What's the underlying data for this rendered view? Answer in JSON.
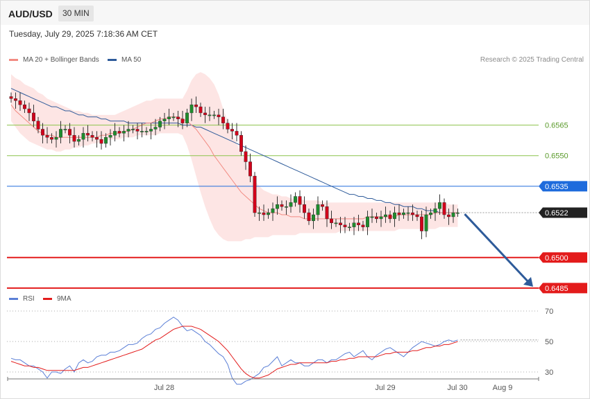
{
  "header": {
    "symbol": "AUD/USD",
    "timeframe": "30 MIN"
  },
  "datetime": "Tuesday, July 29, 2025 7:18:36 AM CET",
  "legend": {
    "ma20": {
      "label": "MA 20 + Bollinger Bands",
      "color": "#f28b82"
    },
    "ma50": {
      "label": "MA 50",
      "color": "#2e5b9a"
    },
    "rsi": {
      "label": "RSI",
      "color": "#5b7fd6"
    },
    "rsi9": {
      "label": "9MA",
      "color": "#e31b1b"
    }
  },
  "credit": "Research © 2025 Trading Central",
  "chart_data": [
    {
      "type": "candlestick",
      "pair": "AUD/USD",
      "timeframe": "30 MIN",
      "ylim": [
        0.647,
        0.6606
      ],
      "levels": [
        {
          "value": 0.6565,
          "label": "0.6565",
          "kind": "resistance",
          "color": "#8bc34a"
        },
        {
          "value": 0.655,
          "label": "0.6550",
          "kind": "resistance",
          "color": "#8bc34a"
        },
        {
          "value": 0.6535,
          "label": "0.6535",
          "kind": "pivot",
          "color": "#1e6bdc"
        },
        {
          "value": 0.6522,
          "label": "0.6522",
          "kind": "last",
          "color": "#222222"
        },
        {
          "value": 0.65,
          "label": "0.6500",
          "kind": "support",
          "color": "#e31b1b"
        },
        {
          "value": 0.6485,
          "label": "0.6485",
          "kind": "support",
          "color": "#e31b1b"
        }
      ],
      "x_labels": [
        {
          "label": "Jul 28",
          "index": 33
        },
        {
          "label": "Jul 29",
          "index": 82
        },
        {
          "label": "Jul 30",
          "index": 98
        },
        {
          "label": "Aug 9",
          "index": 108
        }
      ],
      "close": [
        0.6578,
        0.6577,
        0.6575,
        0.6573,
        0.6571,
        0.6567,
        0.6563,
        0.656,
        0.6559,
        0.6558,
        0.6559,
        0.6563,
        0.6563,
        0.656,
        0.6557,
        0.6558,
        0.6561,
        0.656,
        0.6559,
        0.6558,
        0.6556,
        0.6559,
        0.656,
        0.6562,
        0.6561,
        0.6562,
        0.6563,
        0.6563,
        0.6562,
        0.6562,
        0.6562,
        0.6563,
        0.6564,
        0.6567,
        0.6568,
        0.6569,
        0.6569,
        0.6568,
        0.6566,
        0.6571,
        0.6575,
        0.6574,
        0.6571,
        0.657,
        0.657,
        0.657,
        0.6569,
        0.6566,
        0.6563,
        0.6562,
        0.656,
        0.6552,
        0.6547,
        0.654,
        0.6522,
        0.6522,
        0.6521,
        0.6522,
        0.6524,
        0.6526,
        0.6525,
        0.6525,
        0.6527,
        0.653,
        0.6526,
        0.6522,
        0.6518,
        0.6521,
        0.6526,
        0.6525,
        0.6519,
        0.6517,
        0.6517,
        0.6516,
        0.6515,
        0.6515,
        0.6517,
        0.6516,
        0.6515,
        0.652,
        0.652,
        0.6519,
        0.652,
        0.6521,
        0.6519,
        0.6522,
        0.6521,
        0.6522,
        0.6522,
        0.6521,
        0.652,
        0.6513,
        0.6521,
        0.6522,
        0.6524,
        0.6527,
        0.6521,
        0.652,
        0.6522,
        0.6522
      ],
      "series": [
        {
          "name": "MA 20",
          "values": [
            0.6575,
            0.6572,
            0.657,
            0.6568,
            0.6566,
            0.6564,
            0.6562,
            0.6561,
            0.656,
            0.656,
            0.6559,
            0.6559,
            0.6559,
            0.6559,
            0.6559,
            0.6559,
            0.6559,
            0.6559,
            0.6559,
            0.6559,
            0.656,
            0.656,
            0.6561,
            0.6561,
            0.6561,
            0.6562,
            0.6562,
            0.6563,
            0.6564,
            0.6565,
            0.6566,
            0.6566,
            0.6567,
            0.6568,
            0.6568,
            0.6569,
            0.6569,
            0.6569,
            0.6568,
            0.6567,
            0.6565,
            0.6563,
            0.656,
            0.6557,
            0.6554,
            0.655,
            0.6547,
            0.6544,
            0.6541,
            0.6538,
            0.6535,
            0.6532,
            0.653,
            0.6528,
            0.6526,
            0.6524,
            0.6523,
            0.6522,
            0.6522,
            0.6522,
            0.6521,
            0.6521,
            0.652,
            0.652,
            0.652,
            0.6519,
            0.6519,
            0.6519,
            0.6519,
            0.6519,
            0.6519,
            0.6519,
            0.6519,
            0.6519,
            0.6519,
            0.6519,
            0.6519,
            0.6519,
            0.6519,
            0.652,
            0.652,
            0.652,
            0.652,
            0.652,
            0.652,
            0.652,
            0.6521,
            0.6521,
            0.6521,
            0.6521,
            0.6521,
            0.6521,
            0.6521,
            0.6521,
            0.6522,
            0.6522,
            0.6522,
            0.6522,
            0.6522,
            0.6522
          ]
        },
        {
          "name": "MA 50",
          "values": [
            0.6583,
            0.6582,
            0.6581,
            0.658,
            0.6579,
            0.6578,
            0.6577,
            0.6576,
            0.6575,
            0.6574,
            0.6574,
            0.6573,
            0.6572,
            0.6572,
            0.6571,
            0.657,
            0.657,
            0.6569,
            0.6569,
            0.6569,
            0.6568,
            0.6568,
            0.6567,
            0.6567,
            0.6567,
            0.6567,
            0.6566,
            0.6566,
            0.6566,
            0.6566,
            0.6566,
            0.6566,
            0.6566,
            0.6566,
            0.6566,
            0.6566,
            0.6566,
            0.6566,
            0.6565,
            0.6565,
            0.6565,
            0.6564,
            0.6564,
            0.6563,
            0.6562,
            0.6561,
            0.656,
            0.6559,
            0.6558,
            0.6557,
            0.6556,
            0.6555,
            0.6554,
            0.6553,
            0.6552,
            0.6551,
            0.655,
            0.6549,
            0.6548,
            0.6547,
            0.6546,
            0.6545,
            0.6544,
            0.6543,
            0.6542,
            0.6541,
            0.654,
            0.6539,
            0.6538,
            0.6537,
            0.6536,
            0.6535,
            0.6534,
            0.6533,
            0.6532,
            0.6531,
            0.6531,
            0.653,
            0.653,
            0.6529,
            0.6529,
            0.6528,
            0.6528,
            0.6527,
            0.6527,
            0.6526,
            0.6526,
            0.6525,
            0.6525,
            0.6525,
            0.6524,
            0.6524,
            0.6523,
            0.6523,
            0.6523,
            0.6522,
            0.6522,
            0.6522,
            0.6522,
            0.6522
          ]
        },
        {
          "name": "Bollinger Upper",
          "values": [
            0.659,
            0.6588,
            0.6587,
            0.6585,
            0.6584,
            0.6583,
            0.6581,
            0.658,
            0.6578,
            0.6577,
            0.6576,
            0.6575,
            0.6574,
            0.6573,
            0.6572,
            0.6572,
            0.6571,
            0.6571,
            0.657,
            0.657,
            0.657,
            0.657,
            0.657,
            0.657,
            0.6571,
            0.6572,
            0.6573,
            0.6574,
            0.6575,
            0.6576,
            0.6577,
            0.6577,
            0.6578,
            0.6578,
            0.6578,
            0.6578,
            0.6578,
            0.6578,
            0.6578,
            0.6582,
            0.6587,
            0.659,
            0.6591,
            0.659,
            0.6588,
            0.6585,
            0.658,
            0.6573,
            0.6567,
            0.6561,
            0.6556,
            0.6551,
            0.6546,
            0.6542,
            0.6538,
            0.6535,
            0.6533,
            0.6532,
            0.6531,
            0.6531,
            0.653,
            0.653,
            0.6529,
            0.6529,
            0.6529,
            0.6528,
            0.6528,
            0.6528,
            0.6528,
            0.6527,
            0.6527,
            0.6527,
            0.6527,
            0.6527,
            0.6527,
            0.6527,
            0.6527,
            0.6527,
            0.6527,
            0.6527,
            0.6527,
            0.6527,
            0.6527,
            0.6527,
            0.6527,
            0.6527,
            0.6527,
            0.6527,
            0.6527,
            0.6527,
            0.6527,
            0.6527,
            0.6527,
            0.6527,
            0.6527,
            0.6527,
            0.6527,
            0.6526,
            0.6526,
            0.6526
          ]
        },
        {
          "name": "Bollinger Lower",
          "values": [
            0.6567,
            0.6564,
            0.6561,
            0.6559,
            0.6557,
            0.6556,
            0.6555,
            0.6554,
            0.6553,
            0.6553,
            0.6552,
            0.6552,
            0.6553,
            0.6553,
            0.6554,
            0.6554,
            0.6555,
            0.6555,
            0.6556,
            0.6556,
            0.6557,
            0.6557,
            0.6558,
            0.6558,
            0.6558,
            0.6559,
            0.6559,
            0.6559,
            0.656,
            0.656,
            0.656,
            0.656,
            0.656,
            0.6561,
            0.6561,
            0.6561,
            0.6561,
            0.6561,
            0.656,
            0.6555,
            0.6548,
            0.654,
            0.6532,
            0.6525,
            0.6519,
            0.6514,
            0.6511,
            0.6509,
            0.6508,
            0.6508,
            0.6508,
            0.6508,
            0.6509,
            0.6509,
            0.651,
            0.651,
            0.651,
            0.651,
            0.6511,
            0.6511,
            0.6511,
            0.6511,
            0.6511,
            0.6511,
            0.6512,
            0.6512,
            0.6512,
            0.6512,
            0.6512,
            0.6512,
            0.6512,
            0.6512,
            0.6512,
            0.6513,
            0.6513,
            0.6513,
            0.6513,
            0.6513,
            0.6513,
            0.6513,
            0.6513,
            0.6513,
            0.6513,
            0.6513,
            0.6513,
            0.6513,
            0.6514,
            0.6514,
            0.6514,
            0.6514,
            0.6514,
            0.6514,
            0.6514,
            0.6514,
            0.6514,
            0.6515,
            0.6515,
            0.6515,
            0.6515,
            0.6515
          ]
        }
      ],
      "forecast_arrow": {
        "from": 0.6522,
        "to": 0.6485
      }
    },
    {
      "type": "line",
      "name": "RSI",
      "ylim": [
        20,
        80
      ],
      "yticks": [
        30,
        50,
        70
      ],
      "series": [
        {
          "name": "RSI",
          "values": [
            39,
            38,
            38,
            36,
            34,
            34,
            32,
            30,
            26,
            30,
            30,
            29,
            32,
            34,
            30,
            36,
            38,
            36,
            37,
            40,
            41,
            41,
            43,
            43,
            44,
            46,
            48,
            48,
            49,
            52,
            54,
            55,
            58,
            59,
            62,
            64,
            66,
            64,
            60,
            57,
            58,
            56,
            54,
            50,
            48,
            45,
            42,
            40,
            35,
            26,
            22,
            22,
            24,
            25,
            27,
            29,
            33,
            34,
            37,
            40,
            34,
            36,
            38,
            36,
            36,
            34,
            34,
            36,
            38,
            38,
            36,
            38,
            38,
            40,
            42,
            43,
            40,
            42,
            44,
            40,
            38,
            41,
            43,
            45,
            46,
            44,
            42,
            40,
            43,
            46,
            48,
            50,
            49,
            48,
            47,
            48,
            50,
            51,
            50,
            51
          ]
        },
        {
          "name": "9MA",
          "values": [
            37,
            36,
            35,
            34,
            34,
            33,
            33,
            32,
            31,
            31,
            31,
            31,
            31,
            31,
            31,
            32,
            33,
            33,
            34,
            35,
            36,
            37,
            38,
            39,
            40,
            41,
            42,
            43,
            44,
            45,
            47,
            49,
            51,
            52,
            54,
            56,
            58,
            59,
            60,
            60,
            60,
            59,
            58,
            56,
            54,
            52,
            50,
            47,
            44,
            40,
            36,
            32,
            29,
            27,
            26,
            26,
            27,
            28,
            30,
            32,
            33,
            34,
            35,
            35,
            36,
            36,
            36,
            36,
            36,
            36,
            36,
            37,
            37,
            38,
            38,
            39,
            39,
            40,
            40,
            40,
            40,
            40,
            41,
            42,
            42,
            43,
            43,
            43,
            43,
            44,
            44,
            45,
            46,
            46,
            47,
            47,
            48,
            48,
            49,
            50
          ]
        }
      ]
    }
  ]
}
